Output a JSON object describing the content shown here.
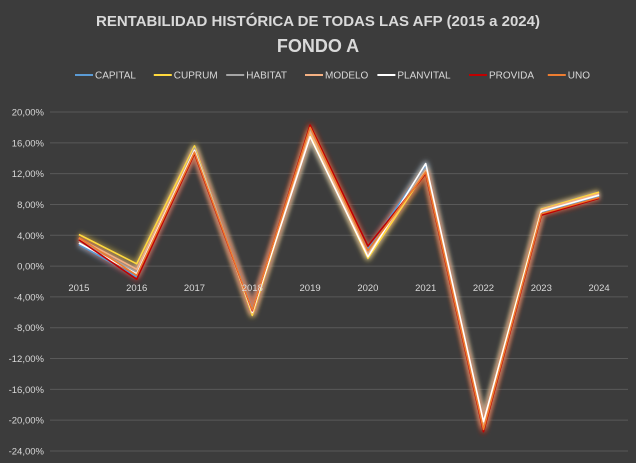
{
  "chart_data": {
    "type": "line",
    "title": "RENTABILIDAD HISTÓRICA DE TODAS LAS AFP (2015 a 2024)",
    "subtitle": "FONDO A",
    "x": [
      "2015",
      "2016",
      "2017",
      "2018",
      "2019",
      "2020",
      "2021",
      "2022",
      "2023",
      "2024"
    ],
    "ylim": [
      -24,
      20
    ],
    "y_ticks": [
      "20,00%",
      "16,00%",
      "12,00%",
      "8,00%",
      "4,00%",
      "0,00%",
      "-4,00%",
      "-8,00%",
      "-12,00%",
      "-16,00%",
      "-20,00%",
      "-24,00%"
    ],
    "grid": true,
    "legend_position": "top",
    "series": [
      {
        "name": "CAPITAL",
        "color": "#5b9bd5",
        "values": [
          2.8,
          -1.4,
          14.9,
          -5.6,
          17.0,
          2.2,
          13.1,
          -20.8,
          7.0,
          9.1
        ]
      },
      {
        "name": "CUPRUM",
        "color": "#ffd93d",
        "values": [
          4.1,
          0.3,
          15.6,
          -6.4,
          17.2,
          1.0,
          12.3,
          -20.3,
          7.4,
          9.6
        ]
      },
      {
        "name": "HABITAT",
        "color": "#a5a5a5",
        "values": [
          3.3,
          -0.8,
          15.3,
          -5.9,
          17.6,
          1.8,
          12.6,
          -20.6,
          7.2,
          9.3
        ]
      },
      {
        "name": "MODELO",
        "color": "#f4b183",
        "values": [
          3.6,
          -0.4,
          15.1,
          -6.1,
          17.4,
          1.5,
          12.4,
          -20.9,
          7.3,
          9.4
        ]
      },
      {
        "name": "PLANVITAL",
        "color": "#ffffff",
        "values": [
          3.0,
          -1.0,
          15.0,
          -6.0,
          16.8,
          1.2,
          13.3,
          -20.2,
          7.1,
          9.2
        ]
      },
      {
        "name": "PROVIDA",
        "color": "#c00000",
        "values": [
          3.4,
          -1.7,
          14.6,
          -5.8,
          18.3,
          2.6,
          12.0,
          -21.5,
          6.6,
          8.8
        ]
      },
      {
        "name": "UNO",
        "color": "#ed7d31",
        "values": [
          3.7,
          -1.2,
          14.8,
          -5.7,
          18.0,
          2.0,
          12.2,
          -21.2,
          6.8,
          8.9
        ]
      }
    ]
  }
}
